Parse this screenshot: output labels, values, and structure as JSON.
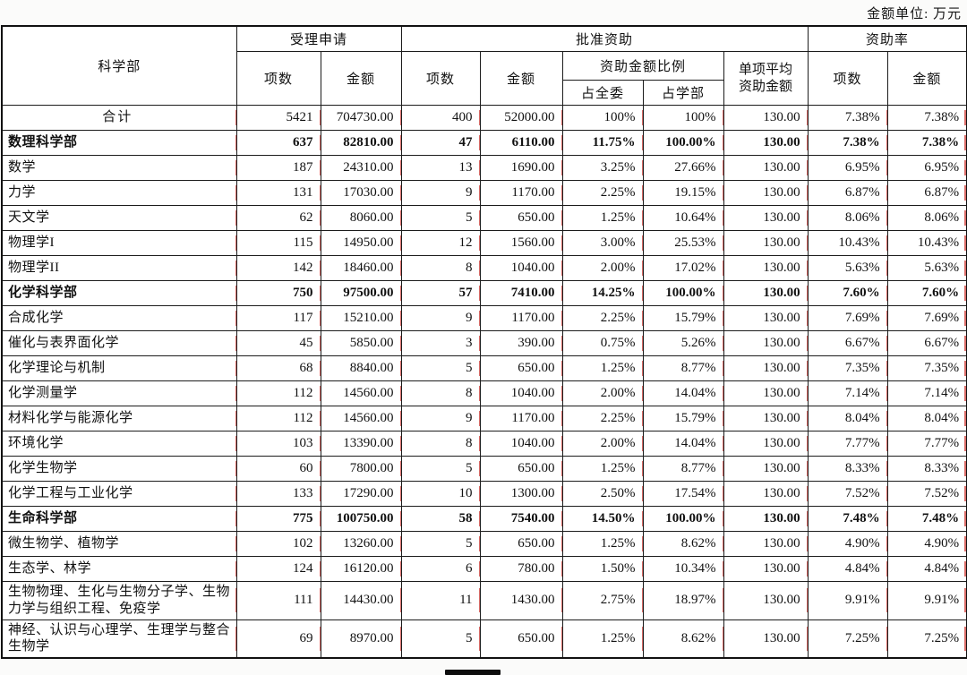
{
  "unit_note": "金额单位: 万元",
  "table": {
    "header": {
      "dept": "科学部",
      "accepted": "受理申请",
      "approved": "批准资助",
      "rate": "资助率",
      "items": "项数",
      "amount": "金额",
      "ratio": "资助金额比例",
      "of_committee": "占全委",
      "of_dept": "占学部",
      "avg": "单项平均 资助金额"
    },
    "rows": [
      {
        "name": "合计",
        "style": "total",
        "cells": [
          "5421",
          "704730.00",
          "400",
          "52000.00",
          "100%",
          "100%",
          "130.00",
          "7.38%",
          "7.38%"
        ]
      },
      {
        "name": "数理科学部",
        "style": "section",
        "cells": [
          "637",
          "82810.00",
          "47",
          "6110.00",
          "11.75%",
          "100.00%",
          "130.00",
          "7.38%",
          "7.38%"
        ]
      },
      {
        "name": "数学",
        "style": "item",
        "cells": [
          "187",
          "24310.00",
          "13",
          "1690.00",
          "3.25%",
          "27.66%",
          "130.00",
          "6.95%",
          "6.95%"
        ]
      },
      {
        "name": "力学",
        "style": "item",
        "cells": [
          "131",
          "17030.00",
          "9",
          "1170.00",
          "2.25%",
          "19.15%",
          "130.00",
          "6.87%",
          "6.87%"
        ]
      },
      {
        "name": "天文学",
        "style": "item",
        "cells": [
          "62",
          "8060.00",
          "5",
          "650.00",
          "1.25%",
          "10.64%",
          "130.00",
          "8.06%",
          "8.06%"
        ]
      },
      {
        "name": "物理学I",
        "style": "item",
        "cells": [
          "115",
          "14950.00",
          "12",
          "1560.00",
          "3.00%",
          "25.53%",
          "130.00",
          "10.43%",
          "10.43%"
        ]
      },
      {
        "name": "物理学II",
        "style": "item",
        "cells": [
          "142",
          "18460.00",
          "8",
          "1040.00",
          "2.00%",
          "17.02%",
          "130.00",
          "5.63%",
          "5.63%"
        ]
      },
      {
        "name": "化学科学部",
        "style": "section",
        "cells": [
          "750",
          "97500.00",
          "57",
          "7410.00",
          "14.25%",
          "100.00%",
          "130.00",
          "7.60%",
          "7.60%"
        ]
      },
      {
        "name": "合成化学",
        "style": "item",
        "cells": [
          "117",
          "15210.00",
          "9",
          "1170.00",
          "2.25%",
          "15.79%",
          "130.00",
          "7.69%",
          "7.69%"
        ]
      },
      {
        "name": "催化与表界面化学",
        "style": "item",
        "cells": [
          "45",
          "5850.00",
          "3",
          "390.00",
          "0.75%",
          "5.26%",
          "130.00",
          "6.67%",
          "6.67%"
        ]
      },
      {
        "name": "化学理论与机制",
        "style": "item",
        "cells": [
          "68",
          "8840.00",
          "5",
          "650.00",
          "1.25%",
          "8.77%",
          "130.00",
          "7.35%",
          "7.35%"
        ]
      },
      {
        "name": "化学测量学",
        "style": "item",
        "cells": [
          "112",
          "14560.00",
          "8",
          "1040.00",
          "2.00%",
          "14.04%",
          "130.00",
          "7.14%",
          "7.14%"
        ]
      },
      {
        "name": "材料化学与能源化学",
        "style": "item",
        "cells": [
          "112",
          "14560.00",
          "9",
          "1170.00",
          "2.25%",
          "15.79%",
          "130.00",
          "8.04%",
          "8.04%"
        ]
      },
      {
        "name": "环境化学",
        "style": "item",
        "cells": [
          "103",
          "13390.00",
          "8",
          "1040.00",
          "2.00%",
          "14.04%",
          "130.00",
          "7.77%",
          "7.77%"
        ]
      },
      {
        "name": "化学生物学",
        "style": "item",
        "cells": [
          "60",
          "7800.00",
          "5",
          "650.00",
          "1.25%",
          "8.77%",
          "130.00",
          "8.33%",
          "8.33%"
        ]
      },
      {
        "name": "化学工程与工业化学",
        "style": "item",
        "cells": [
          "133",
          "17290.00",
          "10",
          "1300.00",
          "2.50%",
          "17.54%",
          "130.00",
          "7.52%",
          "7.52%"
        ]
      },
      {
        "name": "生命科学部",
        "style": "section",
        "cells": [
          "775",
          "100750.00",
          "58",
          "7540.00",
          "14.50%",
          "100.00%",
          "130.00",
          "7.48%",
          "7.48%"
        ]
      },
      {
        "name": "微生物学、植物学",
        "style": "item",
        "cells": [
          "102",
          "13260.00",
          "5",
          "650.00",
          "1.25%",
          "8.62%",
          "130.00",
          "4.90%",
          "4.90%"
        ]
      },
      {
        "name": "生态学、林学",
        "style": "item",
        "cells": [
          "124",
          "16120.00",
          "6",
          "780.00",
          "1.50%",
          "10.34%",
          "130.00",
          "4.84%",
          "4.84%"
        ]
      },
      {
        "name": "生物物理、生化与生物分子学、生物力学与组织工程、免疫学",
        "style": "item",
        "cells": [
          "111",
          "14430.00",
          "11",
          "1430.00",
          "2.75%",
          "18.97%",
          "130.00",
          "9.91%",
          "9.91%"
        ]
      },
      {
        "name": "神经、认识与心理学、生理学与整合生物学",
        "style": "item",
        "cells": [
          "69",
          "8970.00",
          "5",
          "650.00",
          "1.25%",
          "8.62%",
          "130.00",
          "7.25%",
          "7.25%"
        ]
      }
    ]
  }
}
